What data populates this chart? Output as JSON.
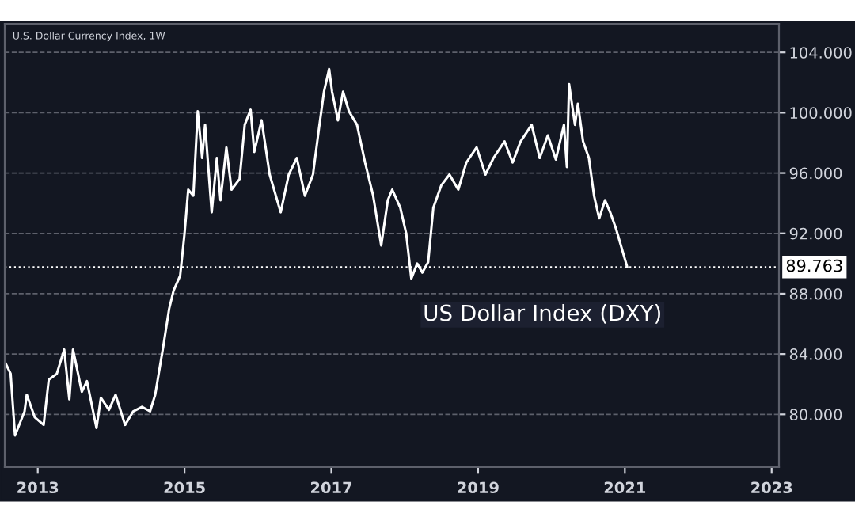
{
  "chart_data": {
    "type": "line",
    "title": "U.S. Dollar Currency Index, 1W",
    "annotations": [
      "US Dollar Index (DXY)"
    ],
    "series": [
      {
        "color": "#ffffff",
        "x": [
          2012.55,
          2012.63,
          2012.69,
          2012.82,
          2012.85,
          2012.96,
          2013.08,
          2013.15,
          2013.26,
          2013.36,
          2013.43,
          2013.48,
          2013.6,
          2013.67,
          2013.8,
          2013.86,
          2013.97,
          2014.06,
          2014.19,
          2014.3,
          2014.42,
          2014.53,
          2014.6,
          2014.71,
          2014.79,
          2014.85,
          2014.94,
          2015.0,
          2015.05,
          2015.12,
          2015.18,
          2015.24,
          2015.28,
          2015.37,
          2015.44,
          2015.49,
          2015.57,
          2015.64,
          2015.75,
          2015.82,
          2015.9,
          2015.95,
          2016.05,
          2016.16,
          2016.31,
          2016.42,
          2016.53,
          2016.64,
          2016.75,
          2016.83,
          2016.9,
          2016.97,
          2017.01,
          2017.09,
          2017.16,
          2017.24,
          2017.35,
          2017.46,
          2017.57,
          2017.68,
          2017.77,
          2017.83,
          2017.94,
          2018.02,
          2018.09,
          2018.17,
          2018.24,
          2018.32,
          2018.39,
          2018.5,
          2018.61,
          2018.73,
          2018.84,
          2018.98,
          2019.1,
          2019.21,
          2019.36,
          2019.47,
          2019.58,
          2019.73,
          2019.84,
          2019.95,
          2020.06,
          2020.17,
          2020.21,
          2020.24,
          2020.32,
          2020.36,
          2020.43,
          2020.51,
          2020.58,
          2020.65,
          2020.73,
          2020.8,
          2020.88,
          2021.03
        ],
        "values": [
          83.5,
          82.7,
          78.6,
          80.2,
          81.3,
          79.8,
          79.3,
          82.3,
          82.7,
          84.3,
          81.0,
          84.3,
          81.5,
          82.2,
          79.1,
          81.1,
          80.3,
          81.3,
          79.3,
          80.2,
          80.5,
          80.2,
          81.3,
          84.5,
          87.0,
          88.2,
          89.2,
          92.0,
          94.9,
          94.5,
          100.1,
          97.0,
          99.2,
          93.4,
          97.0,
          94.2,
          97.7,
          94.9,
          95.6,
          99.2,
          100.2,
          97.4,
          99.5,
          95.9,
          93.4,
          95.9,
          97.0,
          94.5,
          95.9,
          98.9,
          101.4,
          102.9,
          101.4,
          99.5,
          101.4,
          100.1,
          99.2,
          96.7,
          94.5,
          91.2,
          94.2,
          94.9,
          93.7,
          92.0,
          89.0,
          90.0,
          89.4,
          90.1,
          93.7,
          95.2,
          95.9,
          94.9,
          96.7,
          97.7,
          95.9,
          97.0,
          98.1,
          96.7,
          98.1,
          99.2,
          97.0,
          98.5,
          96.9,
          99.2,
          96.4,
          101.9,
          99.2,
          100.6,
          98.1,
          97.0,
          94.5,
          93.0,
          94.2,
          93.4,
          92.3,
          89.8
        ]
      }
    ],
    "xlim": [
      2012.55,
      2023.1
    ],
    "ylim": [
      76.5,
      105.9
    ],
    "xticks": [
      2013,
      2015,
      2017,
      2019,
      2021,
      2023
    ],
    "yticks": [
      {
        "value": 80,
        "label": "80.000"
      },
      {
        "value": 84,
        "label": "84.000"
      },
      {
        "value": 88,
        "label": "88.000"
      },
      {
        "value": 92,
        "label": "92.000"
      },
      {
        "value": 96,
        "label": "96.000"
      },
      {
        "value": 100,
        "label": "100.000"
      },
      {
        "value": 104,
        "label": "104.000"
      }
    ],
    "ref_lines": [
      {
        "axis": "y",
        "value": 89.763,
        "label": "89.763",
        "color": "#ffffff",
        "line_style": "dotted"
      }
    ],
    "grid": "y",
    "line_style": "solid",
    "marker": "none"
  }
}
